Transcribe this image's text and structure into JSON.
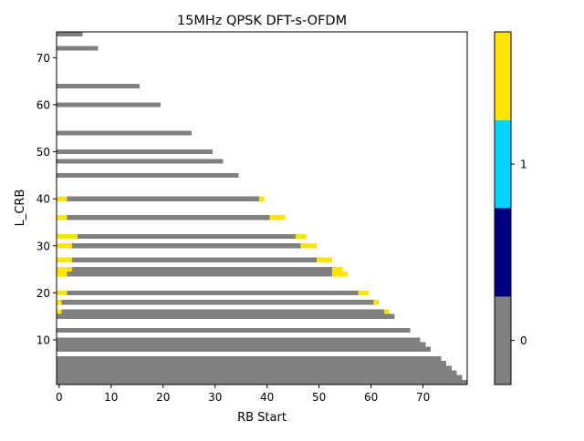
{
  "chart_data": {
    "type": "heatmap",
    "title": "15MHz QPSK DFT-s-OFDM",
    "xlabel": "RB Start",
    "ylabel": "L_CRB",
    "xlim": [
      -0.5,
      78.5
    ],
    "ylim": [
      0.5,
      75.5
    ],
    "x_ticks": [
      0,
      10,
      20,
      30,
      40,
      50,
      60,
      70
    ],
    "y_ticks": [
      10,
      20,
      30,
      40,
      50,
      60,
      70
    ],
    "grid": false,
    "background_value": "empty",
    "colorbar": {
      "levels": [
        {
          "value": 0,
          "color": "#808080"
        },
        {
          "value": 0.5,
          "color": "#000080"
        },
        {
          "value": 1,
          "color": "#00d4ff"
        },
        {
          "value": 1.5,
          "color": "#ffe400"
        }
      ],
      "tick_labels": [
        "0",
        "1"
      ]
    },
    "colors": {
      "grey": "#808080",
      "navy": "#000080",
      "cyan": "#00d4ff",
      "yellow": "#ffe400"
    },
    "rows": [
      {
        "L": 1,
        "segments": [
          {
            "start": 0,
            "end": 78,
            "value": 0
          }
        ]
      },
      {
        "L": 2,
        "segments": [
          {
            "start": 0,
            "end": 77,
            "value": 0
          }
        ]
      },
      {
        "L": 3,
        "segments": [
          {
            "start": 0,
            "end": 76,
            "value": 0
          }
        ]
      },
      {
        "L": 4,
        "segments": [
          {
            "start": 0,
            "end": 75,
            "value": 0
          }
        ]
      },
      {
        "L": 5,
        "segments": [
          {
            "start": 0,
            "end": 74,
            "value": 0
          }
        ]
      },
      {
        "L": 6,
        "segments": [
          {
            "start": 0,
            "end": 73,
            "value": 0
          }
        ]
      },
      {
        "L": 8,
        "segments": [
          {
            "start": 0,
            "end": 71,
            "value": 0
          }
        ]
      },
      {
        "L": 9,
        "segments": [
          {
            "start": 0,
            "end": 70,
            "value": 0
          }
        ]
      },
      {
        "L": 10,
        "segments": [
          {
            "start": 0,
            "end": 69,
            "value": 0
          }
        ]
      },
      {
        "L": 12,
        "segments": [
          {
            "start": 0,
            "end": 67,
            "value": 0
          }
        ]
      },
      {
        "L": 15,
        "segments": [
          {
            "start": 0,
            "end": 64,
            "value": 0
          }
        ]
      },
      {
        "L": 16,
        "segments": [
          {
            "start": 0,
            "end": 0,
            "value": 1.5
          },
          {
            "start": 1,
            "end": 62,
            "value": 0
          },
          {
            "start": 63,
            "end": 63,
            "value": 1.5
          }
        ]
      },
      {
        "L": 18,
        "segments": [
          {
            "start": 0,
            "end": 0,
            "value": 1.5
          },
          {
            "start": 1,
            "end": 60,
            "value": 0
          },
          {
            "start": 61,
            "end": 61,
            "value": 1.5
          }
        ]
      },
      {
        "L": 20,
        "segments": [
          {
            "start": 0,
            "end": 1,
            "value": 1.5
          },
          {
            "start": 2,
            "end": 57,
            "value": 0
          },
          {
            "start": 58,
            "end": 59,
            "value": 1.5
          }
        ]
      },
      {
        "L": 24,
        "segments": [
          {
            "start": 0,
            "end": 1,
            "value": 1.5
          },
          {
            "start": 2,
            "end": 52,
            "value": 0
          },
          {
            "start": 53,
            "end": 55,
            "value": 1.5
          }
        ]
      },
      {
        "L": 25,
        "segments": [
          {
            "start": 0,
            "end": 2,
            "value": 1.5
          },
          {
            "start": 3,
            "end": 52,
            "value": 0
          },
          {
            "start": 53,
            "end": 54,
            "value": 1.5
          }
        ]
      },
      {
        "L": 27,
        "segments": [
          {
            "start": 0,
            "end": 2,
            "value": 1.5
          },
          {
            "start": 3,
            "end": 49,
            "value": 0
          },
          {
            "start": 50,
            "end": 52,
            "value": 1.5
          }
        ]
      },
      {
        "L": 30,
        "segments": [
          {
            "start": 0,
            "end": 2,
            "value": 1.5
          },
          {
            "start": 3,
            "end": 46,
            "value": 0
          },
          {
            "start": 47,
            "end": 49,
            "value": 1.5
          }
        ]
      },
      {
        "L": 32,
        "segments": [
          {
            "start": 0,
            "end": 3,
            "value": 1.5
          },
          {
            "start": 4,
            "end": 45,
            "value": 0
          },
          {
            "start": 46,
            "end": 47,
            "value": 1.5
          }
        ]
      },
      {
        "L": 36,
        "segments": [
          {
            "start": 0,
            "end": 1,
            "value": 1.5
          },
          {
            "start": 2,
            "end": 40,
            "value": 0
          },
          {
            "start": 41,
            "end": 43,
            "value": 1.5
          }
        ]
      },
      {
        "L": 40,
        "segments": [
          {
            "start": 0,
            "end": 1,
            "value": 1.5
          },
          {
            "start": 2,
            "end": 38,
            "value": 0
          },
          {
            "start": 39,
            "end": 39,
            "value": 1.5
          }
        ]
      },
      {
        "L": 45,
        "segments": [
          {
            "start": 0,
            "end": 34,
            "value": 0
          }
        ]
      },
      {
        "L": 48,
        "segments": [
          {
            "start": 0,
            "end": 31,
            "value": 0
          }
        ]
      },
      {
        "L": 50,
        "segments": [
          {
            "start": 0,
            "end": 29,
            "value": 0
          }
        ]
      },
      {
        "L": 54,
        "segments": [
          {
            "start": 0,
            "end": 25,
            "value": 0
          }
        ]
      },
      {
        "L": 60,
        "segments": [
          {
            "start": 0,
            "end": 19,
            "value": 0
          }
        ]
      },
      {
        "L": 64,
        "segments": [
          {
            "start": 0,
            "end": 15,
            "value": 0
          }
        ]
      },
      {
        "L": 72,
        "segments": [
          {
            "start": 0,
            "end": 7,
            "value": 0
          }
        ]
      },
      {
        "L": 75,
        "segments": [
          {
            "start": 0,
            "end": 4,
            "value": 0
          }
        ]
      }
    ]
  }
}
